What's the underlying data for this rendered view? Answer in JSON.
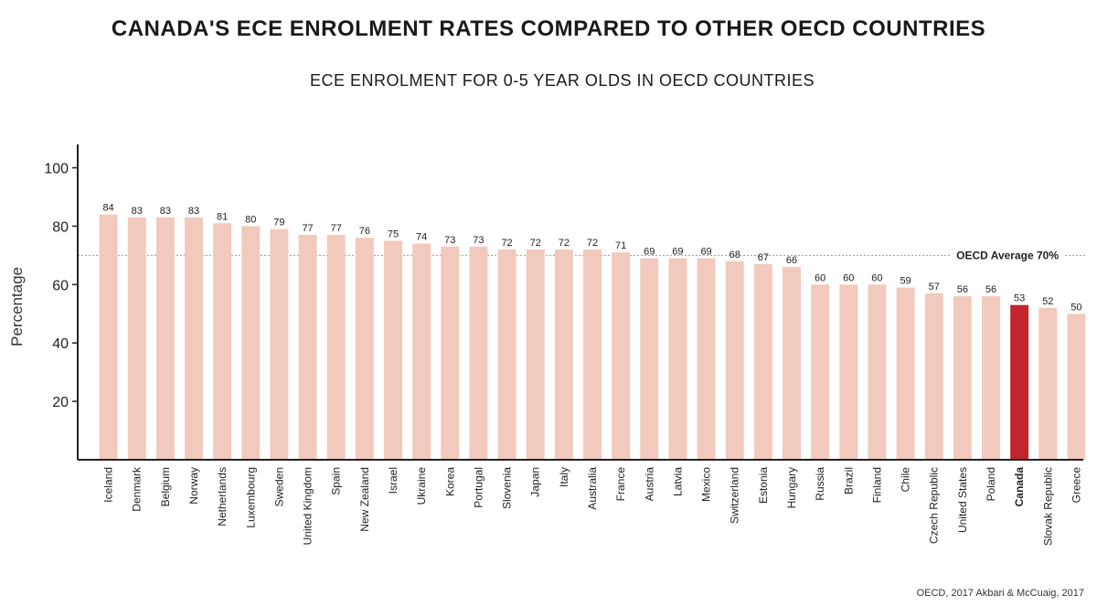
{
  "chart_data": {
    "type": "bar",
    "title": "CANADA'S ECE ENROLMENT RATES COMPARED TO OTHER OECD COUNTRIES",
    "subtitle": "ECE ENROLMENT FOR 0-5 YEAR OLDS IN OECD COUNTRIES",
    "xlabel": "",
    "ylabel": "Percentage",
    "ylim": [
      0,
      108
    ],
    "yticks": [
      20,
      40,
      60,
      80,
      100
    ],
    "categories": [
      "Iceland",
      "Denmark",
      "Belgium",
      "Norway",
      "Netherlands",
      "Luxembourg",
      "Sweden",
      "United Kingdom",
      "Spain",
      "New Zealand",
      "Israel",
      "Ukraine",
      "Korea",
      "Portugal",
      "Slovenia",
      "Japan",
      "Italy",
      "Australia",
      "France",
      "Austria",
      "Latvia",
      "Mexico",
      "Switzerland",
      "Estonia",
      "Hungary",
      "Russia",
      "Brazil",
      "Finland",
      "Chile",
      "Czech Republic",
      "United States",
      "Poland",
      "Canada",
      "Slovak Republic",
      "Greece"
    ],
    "values": [
      84,
      83,
      83,
      83,
      81,
      80,
      79,
      77,
      77,
      76,
      75,
      74,
      73,
      73,
      72,
      72,
      72,
      72,
      71,
      69,
      69,
      69,
      68,
      67,
      66,
      60,
      60,
      60,
      59,
      57,
      56,
      56,
      53,
      52,
      50
    ],
    "highlight": "Canada",
    "reference_line": {
      "value": 70,
      "label": "OECD Average 70%"
    },
    "colors": {
      "bar": "#f2c9bd",
      "highlight": "#c0262b",
      "axis": "#222222",
      "reference": "#999999"
    }
  },
  "source": "OECD, 2017 Akbari & McCuaig, 2017"
}
